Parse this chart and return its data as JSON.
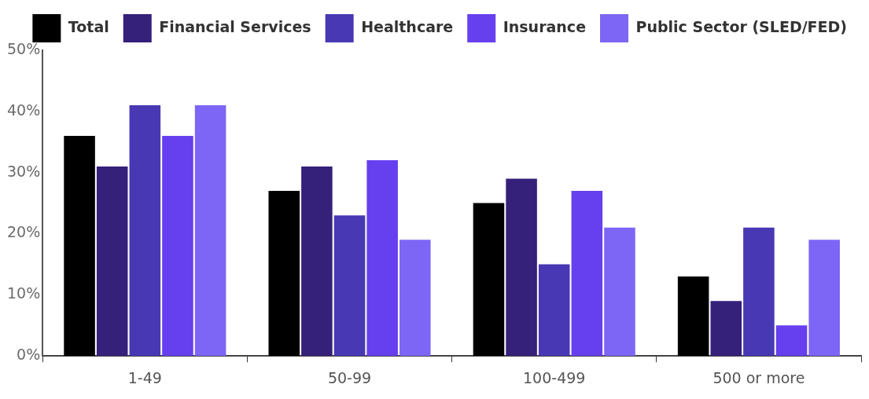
{
  "chart_data": {
    "type": "bar",
    "categories": [
      "1-49",
      "50-99",
      "100-499",
      "500 or more"
    ],
    "series": [
      {
        "name": "Total",
        "color": "#000000",
        "values": [
          36,
          27,
          25,
          13
        ]
      },
      {
        "name": "Financial Services",
        "color": "#35207a",
        "values": [
          31,
          31,
          29,
          9
        ]
      },
      {
        "name": "Healthcare",
        "color": "#4838b4",
        "values": [
          41,
          23,
          15,
          21
        ]
      },
      {
        "name": "Insurance",
        "color": "#6640ee",
        "values": [
          36,
          32,
          27,
          5
        ]
      },
      {
        "name": "Public Sector (SLED/FED)",
        "color": "#7d66f5",
        "values": [
          41,
          19,
          21,
          19
        ]
      }
    ],
    "ylim": [
      0,
      50
    ],
    "yticks": [
      {
        "value": 0,
        "label": "0%"
      },
      {
        "value": 10,
        "label": "10%"
      },
      {
        "value": 20,
        "label": "20%"
      },
      {
        "value": 30,
        "label": "30%"
      },
      {
        "value": 40,
        "label": "40%"
      },
      {
        "value": 50,
        "label": "50%"
      }
    ],
    "grid": false,
    "legend": "top"
  }
}
